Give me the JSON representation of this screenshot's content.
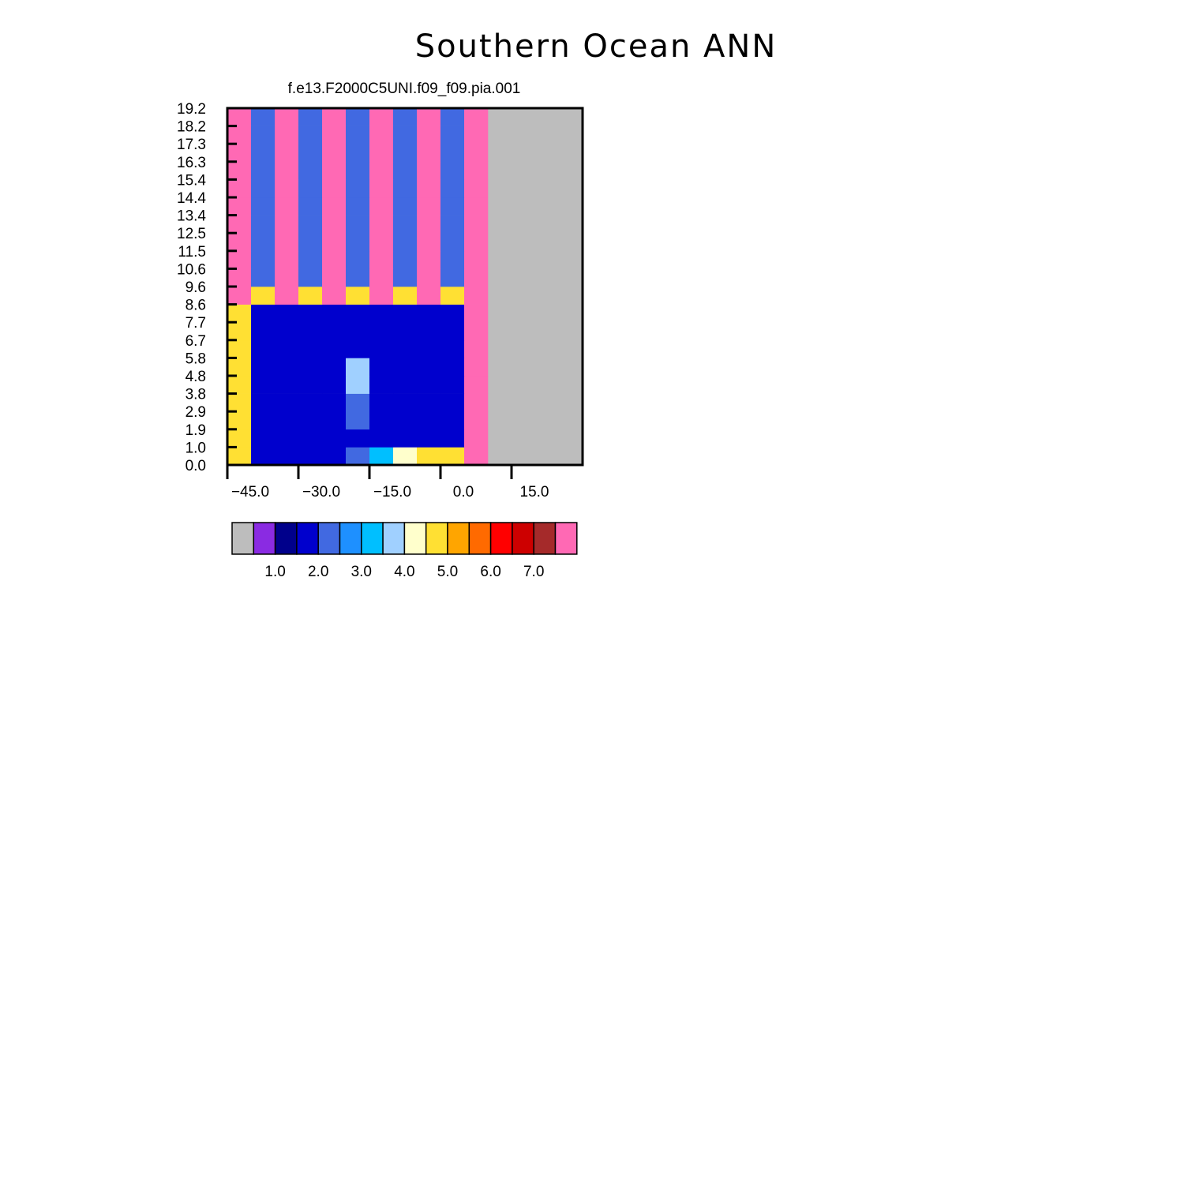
{
  "figure": {
    "title": "Southern Ocean ANN"
  },
  "palette": [
    "#bdbdbd",
    "#8a2be2",
    "#00008b",
    "#0000cd",
    "#4169e1",
    "#1e90ff",
    "#00bfff",
    "#a0d0ff",
    "#ffffcc",
    "#ffe033",
    "#ffa500",
    "#ff6a00",
    "#ff0000",
    "#cd0000",
    "#a52a2a",
    "#ff69b4"
  ],
  "chart_data": [
    {
      "type": "heatmap",
      "title": "f.e13.F2000C5UNI.f09_f09.pia.001",
      "x_ticks": [
        "-45.0",
        "-30.0",
        "-15.0",
        "0.0",
        "15.0"
      ],
      "y_ticks": [
        "0.0",
        "1.0",
        "1.9",
        "2.9",
        "3.8",
        "4.8",
        "5.8",
        "6.7",
        "7.7",
        "8.6",
        "9.6",
        "10.6",
        "11.5",
        "12.5",
        "13.4",
        "14.4",
        "15.4",
        "16.3",
        "17.3",
        "18.2",
        "19.2"
      ],
      "colorbar_labels": [
        "1.0",
        "2.0",
        "3.0",
        "4.0",
        "5.0",
        "6.0",
        "7.0"
      ],
      "grid_rows_bottom_to_top": [
        "9333346899F",
        "9333333333F",
        "9333343333F",
        "9333343333F",
        "9333373333F",
        "9333373333F",
        "9333333333F",
        "9333333333F",
        "9333333333F",
        "F9F9F9F9F9F",
        "F4F4F4F4F4F",
        "F4F4F4F4F4F",
        "F4F4F4F4F4F",
        "F4F4F4F4F4F",
        "F4F4F4F4F4F",
        "F4F4F4F4F4F",
        "F4F4F4F4F4F",
        "F4F4F4F4F4F",
        "F4F4F4F4F4F",
        "F4F4F4F4F4F"
      ]
    }
  ]
}
